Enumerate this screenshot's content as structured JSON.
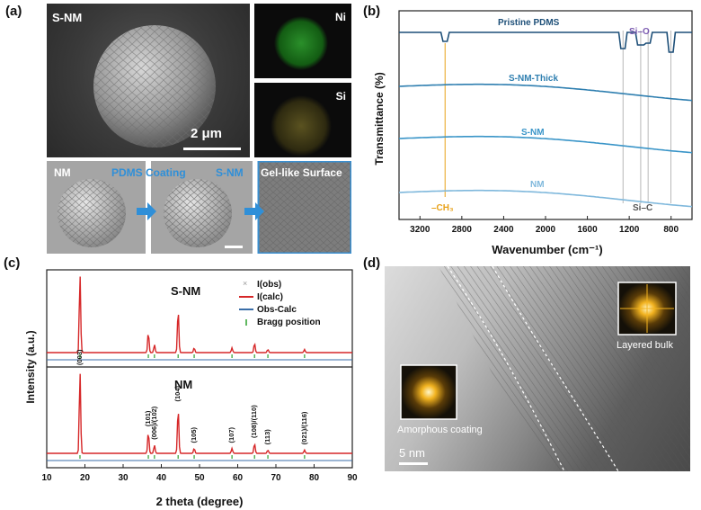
{
  "panel_labels": {
    "a": "(a)",
    "b": "(b)",
    "c": "(c)",
    "d": "(d)"
  },
  "panel_a": {
    "main_label": "S-NM",
    "scale_bar": "2 μm",
    "map_ni": "Ni",
    "map_si": "Si",
    "bottom_nm": "NM",
    "bottom_coating": "PDMS Coating",
    "bottom_snm": "S-NM",
    "bottom_surface": "Gel-like Surface"
  },
  "panel_b": {
    "ylabel": "Transmittance (%)",
    "xlabel": "Wavenumber (cm⁻¹)",
    "xticks": [
      "3200",
      "2800",
      "2400",
      "2000",
      "1600",
      "1200",
      "800"
    ],
    "series": [
      "Pristine PDMS",
      "S-NM-Thick",
      "S-NM",
      "NM"
    ],
    "annot_sio": "Si–O",
    "annot_ch3": "–CH₃",
    "annot_sic": "Si–C",
    "colors": [
      "#1d4f78",
      "#2f7fb0",
      "#3a95c8",
      "#7fb8dc"
    ]
  },
  "panel_c": {
    "ylabel": "Intensity (a.u.)",
    "xlabel": "2 theta (degree)",
    "xticks": [
      "10",
      "20",
      "30",
      "40",
      "50",
      "60",
      "70",
      "80",
      "90"
    ],
    "top_label": "S-NM",
    "bottom_label": "NM",
    "legend": [
      "I(obs)",
      "I(calc)",
      "Obs-Calc",
      "Bragg position"
    ],
    "peaks": [
      {
        "label": "(003)",
        "x": 18.7
      },
      {
        "label": "(101)",
        "x": 36.6
      },
      {
        "label": "(006)/(102)",
        "x": 38.2
      },
      {
        "label": "(104)",
        "x": 44.4
      },
      {
        "label": "(105)",
        "x": 48.6
      },
      {
        "label": "(107)",
        "x": 58.5
      },
      {
        "label": "(108)/(110)",
        "x": 64.4
      },
      {
        "label": "(113)",
        "x": 67.9
      },
      {
        "label": "(021)/(116)",
        "x": 77.5
      }
    ]
  },
  "panel_d": {
    "fft_left_label": "Amorphous coating",
    "fft_right_label": "Layered bulk",
    "scale_bar": "5 nm"
  }
}
